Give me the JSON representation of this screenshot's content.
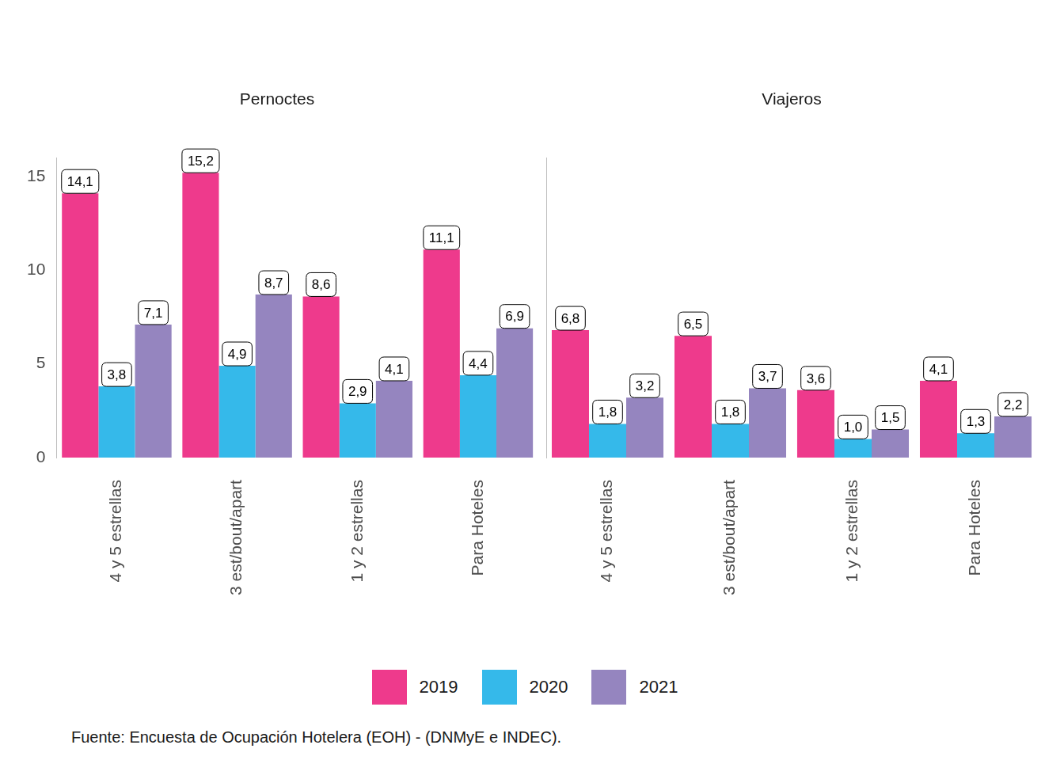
{
  "chart_data": [
    {
      "type": "bar",
      "title": "Pernoctes",
      "categories": [
        "4 y 5 estrellas",
        "3 est/bout/apart",
        "1 y 2 estrellas",
        "Para Hoteles"
      ],
      "series": [
        {
          "name": "2019",
          "color": "#ee3a8c",
          "values": [
            14.1,
            15.2,
            8.6,
            11.1
          ],
          "value_labels": [
            "14,1",
            "15,2",
            "8,6",
            "11,1"
          ]
        },
        {
          "name": "2020",
          "color": "#35b9ea",
          "values": [
            3.8,
            4.9,
            2.9,
            4.4
          ],
          "value_labels": [
            "3,8",
            "4,9",
            "2,9",
            "4,4"
          ]
        },
        {
          "name": "2021",
          "color": "#9585bf",
          "values": [
            7.1,
            8.7,
            4.1,
            6.9
          ],
          "value_labels": [
            "7,1",
            "8,7",
            "4,1",
            "6,9"
          ]
        }
      ],
      "ylim": [
        0,
        16
      ],
      "yticks": [
        0,
        5,
        10,
        15
      ],
      "grid": false,
      "data_labels": true,
      "legend": "bottom"
    },
    {
      "type": "bar",
      "title": "Viajeros",
      "categories": [
        "4 y 5 estrellas",
        "3 est/bout/apart",
        "1 y 2 estrellas",
        "Para Hoteles"
      ],
      "series": [
        {
          "name": "2019",
          "color": "#ee3a8c",
          "values": [
            6.8,
            6.5,
            3.6,
            4.1
          ],
          "value_labels": [
            "6,8",
            "6,5",
            "3,6",
            "4,1"
          ]
        },
        {
          "name": "2020",
          "color": "#35b9ea",
          "values": [
            1.8,
            1.8,
            1.0,
            1.3
          ],
          "value_labels": [
            "1,8",
            "1,8",
            "1,0",
            "1,3"
          ]
        },
        {
          "name": "2021",
          "color": "#9585bf",
          "values": [
            3.2,
            3.7,
            1.5,
            2.2
          ],
          "value_labels": [
            "3,2",
            "3,7",
            "1,5",
            "2,2"
          ]
        }
      ],
      "ylim": [
        0,
        16
      ],
      "yticks": [
        0,
        5,
        10,
        15
      ],
      "grid": false,
      "data_labels": true,
      "tick_labels": "x"
    }
  ],
  "caption": "Fuente: Encuesta de Ocupación Hotelera (EOH) - (DNMyE e INDEC)."
}
